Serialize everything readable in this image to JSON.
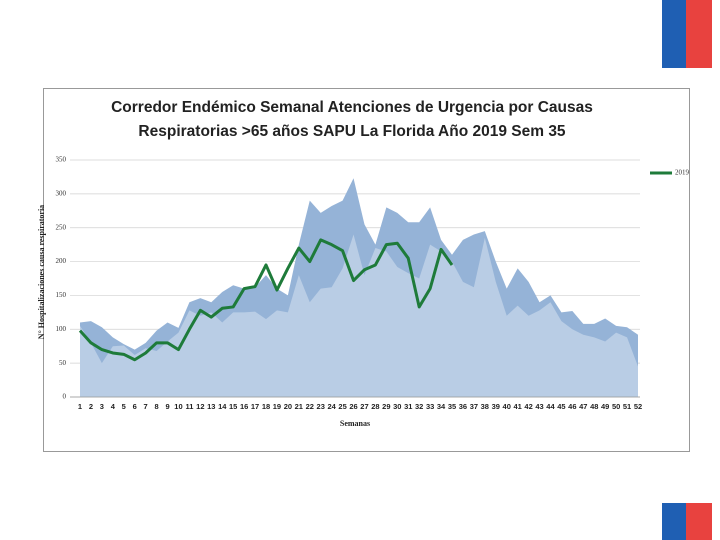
{
  "chart_data": {
    "type": "area",
    "title_lines": [
      "Corredor Endémico Semanal Atenciones de Urgencia por Causas",
      "Respiratorias >65 años SAPU La Florida Año 2019 Sem 35"
    ],
    "y_label": "N° Hospitalizaciones causa respiratoria",
    "x_label": "Semanas",
    "x": [
      1,
      2,
      3,
      4,
      5,
      6,
      7,
      8,
      9,
      10,
      11,
      12,
      13,
      14,
      15,
      16,
      17,
      18,
      19,
      20,
      21,
      22,
      23,
      24,
      25,
      26,
      27,
      28,
      29,
      30,
      31,
      32,
      33,
      34,
      35,
      36,
      37,
      38,
      39,
      40,
      41,
      42,
      43,
      44,
      45,
      46,
      47,
      48,
      49,
      50,
      51,
      52
    ],
    "ylim": [
      0,
      350
    ],
    "yticks": [
      0,
      50,
      100,
      150,
      200,
      250,
      300,
      350
    ],
    "grid": true,
    "legend": "right",
    "series": [
      {
        "color": "#95b3d7",
        "kind": "area",
        "values": [
          110,
          112,
          103,
          88,
          78,
          70,
          80,
          98,
          110,
          102,
          140,
          146,
          140,
          155,
          165,
          160,
          162,
          180,
          160,
          150,
          225,
          290,
          272,
          282,
          290,
          323,
          255,
          225,
          280,
          272,
          258,
          258,
          280,
          232,
          210,
          232,
          240,
          245,
          200,
          160,
          190,
          170,
          140,
          150,
          125,
          127,
          108,
          108,
          116,
          105,
          103,
          92
        ]
      },
      {
        "color": "#b9cde5",
        "kind": "area",
        "values": [
          105,
          80,
          50,
          75,
          76,
          62,
          72,
          68,
          82,
          95,
          128,
          120,
          125,
          110,
          125,
          125,
          126,
          115,
          128,
          125,
          180,
          140,
          160,
          162,
          190,
          240,
          180,
          220,
          215,
          192,
          183,
          175,
          225,
          215,
          200,
          170,
          162,
          235,
          170,
          120,
          135,
          120,
          128,
          140,
          112,
          100,
          92,
          88,
          82,
          95,
          88,
          45
        ]
      },
      {
        "name": "2019",
        "color": "#1e7b3a",
        "kind": "line",
        "values": [
          98,
          80,
          70,
          65,
          63,
          55,
          65,
          80,
          80,
          70,
          100,
          128,
          118,
          131,
          133,
          160,
          163,
          195,
          158,
          190,
          220,
          200,
          232,
          225,
          216,
          172,
          188,
          195,
          225,
          227,
          205,
          133,
          160,
          218,
          195,
          null,
          null,
          null,
          null,
          null,
          null,
          null,
          null,
          null,
          null,
          null,
          null,
          null,
          null,
          null,
          null,
          null
        ]
      }
    ]
  }
}
